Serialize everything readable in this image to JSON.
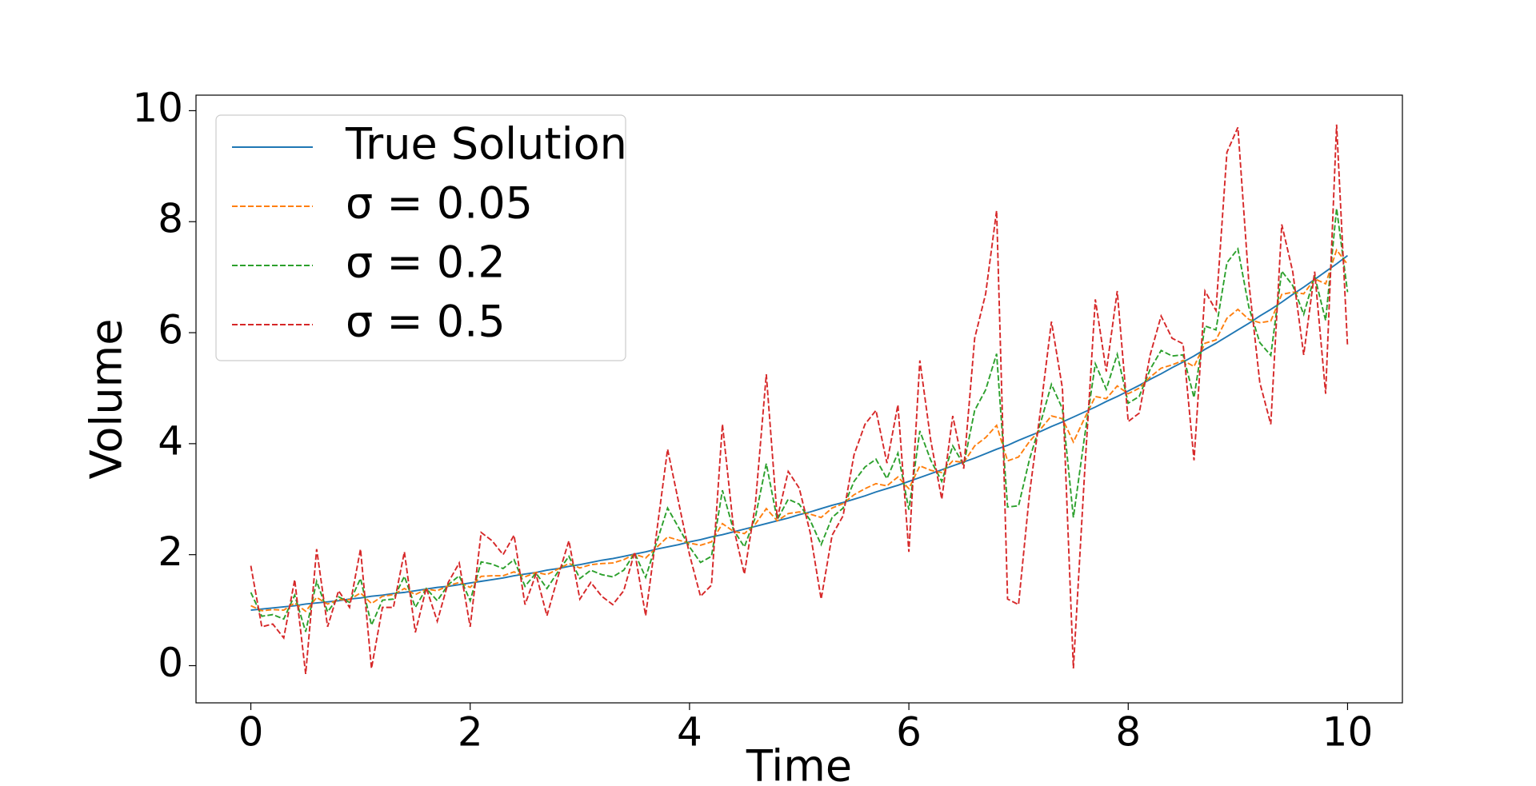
{
  "chart_data": {
    "type": "line",
    "xlabel": "Time",
    "ylabel": "Volume",
    "x": [
      0,
      0.1,
      0.2,
      0.3,
      0.4,
      0.5,
      0.6,
      0.7,
      0.8,
      0.9,
      1,
      1.1,
      1.2,
      1.3,
      1.4,
      1.5,
      1.6,
      1.7,
      1.8,
      1.9,
      2,
      2.1,
      2.2,
      2.3,
      2.4,
      2.5,
      2.6,
      2.7,
      2.8,
      2.9,
      3,
      3.1,
      3.2,
      3.3,
      3.4,
      3.5,
      3.6,
      3.7,
      3.8,
      3.9,
      4,
      4.1,
      4.2,
      4.3,
      4.4,
      4.5,
      4.6,
      4.7,
      4.8,
      4.9,
      5,
      5.1,
      5.2,
      5.3,
      5.4,
      5.5,
      5.6,
      5.7,
      5.8,
      5.9,
      6,
      6.1,
      6.2,
      6.3,
      6.4,
      6.5,
      6.6,
      6.7,
      6.8,
      6.9,
      7,
      7.1,
      7.2,
      7.3,
      7.4,
      7.5,
      7.6,
      7.7,
      7.8,
      7.9,
      8,
      8.1,
      8.2,
      8.3,
      8.4,
      8.5,
      8.6,
      8.7,
      8.8,
      8.9,
      9,
      9.1,
      9.2,
      9.3,
      9.4,
      9.5,
      9.6,
      9.7,
      9.8,
      9.9,
      10
    ],
    "series": [
      {
        "name": "True Solution",
        "color": "#1f77b4",
        "dashed": false,
        "values": [
          1.0,
          1.02,
          1.04,
          1.06,
          1.08,
          1.11,
          1.13,
          1.15,
          1.17,
          1.2,
          1.22,
          1.25,
          1.27,
          1.3,
          1.32,
          1.35,
          1.38,
          1.41,
          1.43,
          1.46,
          1.49,
          1.52,
          1.55,
          1.58,
          1.62,
          1.65,
          1.68,
          1.72,
          1.75,
          1.79,
          1.82,
          1.86,
          1.9,
          1.93,
          1.97,
          2.01,
          2.05,
          2.1,
          2.14,
          2.18,
          2.23,
          2.27,
          2.32,
          2.36,
          2.41,
          2.46,
          2.51,
          2.56,
          2.61,
          2.66,
          2.72,
          2.77,
          2.83,
          2.89,
          2.94,
          3.0,
          3.06,
          3.13,
          3.19,
          3.25,
          3.32,
          3.39,
          3.46,
          3.53,
          3.6,
          3.67,
          3.74,
          3.82,
          3.9,
          3.97,
          4.06,
          4.14,
          4.22,
          4.31,
          4.39,
          4.48,
          4.57,
          4.66,
          4.76,
          4.85,
          4.95,
          5.05,
          5.16,
          5.26,
          5.37,
          5.47,
          5.58,
          5.7,
          5.81,
          5.93,
          6.05,
          6.17,
          6.3,
          6.42,
          6.55,
          6.69,
          6.82,
          6.96,
          7.1,
          7.24,
          7.39
        ]
      },
      {
        "name": "σ = 0.05",
        "color": "#ff7f0e",
        "dashed": true,
        "values": [
          1.08,
          0.99,
          1.01,
          1.0,
          1.13,
          0.98,
          1.23,
          1.11,
          1.19,
          1.19,
          1.31,
          1.12,
          1.25,
          1.28,
          1.39,
          1.28,
          1.38,
          1.35,
          1.44,
          1.5,
          1.41,
          1.61,
          1.62,
          1.62,
          1.69,
          1.6,
          1.68,
          1.64,
          1.74,
          1.84,
          1.76,
          1.82,
          1.84,
          1.85,
          1.91,
          2.01,
          1.94,
          2.13,
          2.32,
          2.26,
          2.21,
          2.17,
          2.23,
          2.56,
          2.42,
          2.38,
          2.55,
          2.83,
          2.61,
          2.74,
          2.77,
          2.73,
          2.67,
          2.84,
          2.92,
          3.08,
          3.19,
          3.28,
          3.24,
          3.4,
          3.19,
          3.6,
          3.52,
          3.48,
          3.69,
          3.66,
          3.96,
          4.11,
          4.33,
          3.69,
          3.76,
          4.04,
          4.26,
          4.5,
          4.45,
          4.03,
          4.45,
          4.85,
          4.81,
          5.04,
          4.9,
          5.0,
          5.2,
          5.36,
          5.42,
          5.5,
          5.39,
          5.81,
          5.87,
          6.26,
          6.42,
          6.24,
          6.18,
          6.21,
          6.69,
          6.73,
          6.7,
          6.97,
          6.88,
          7.49,
          7.23
        ]
      },
      {
        "name": "σ = 0.2",
        "color": "#2ca02c",
        "dashed": true,
        "values": [
          1.32,
          0.89,
          0.92,
          0.84,
          1.27,
          0.61,
          1.52,
          0.97,
          1.24,
          1.14,
          1.57,
          0.73,
          1.18,
          1.2,
          1.61,
          1.05,
          1.39,
          1.17,
          1.46,
          1.62,
          1.17,
          1.87,
          1.83,
          1.75,
          1.91,
          1.43,
          1.67,
          1.39,
          1.69,
          1.97,
          1.57,
          1.72,
          1.64,
          1.6,
          1.72,
          2.03,
          1.59,
          2.22,
          2.84,
          2.49,
          2.14,
          1.86,
          1.97,
          3.16,
          2.45,
          2.14,
          2.67,
          3.64,
          2.63,
          3.0,
          2.91,
          2.62,
          2.18,
          2.67,
          2.84,
          3.32,
          3.58,
          3.72,
          3.37,
          3.83,
          2.81,
          4.23,
          3.7,
          3.32,
          3.96,
          3.62,
          4.6,
          4.97,
          5.62,
          2.86,
          2.88,
          3.72,
          4.37,
          5.07,
          4.63,
          2.67,
          4.1,
          5.44,
          4.98,
          5.61,
          4.73,
          4.85,
          5.34,
          5.68,
          5.58,
          5.6,
          4.83,
          6.12,
          6.05,
          7.26,
          7.51,
          6.46,
          5.82,
          5.59,
          7.11,
          6.85,
          6.33,
          7.02,
          6.22,
          8.24,
          6.73
        ]
      },
      {
        "name": "σ = 0.5",
        "color": "#d62728",
        "dashed": true,
        "values": [
          1.8,
          0.7,
          0.75,
          0.5,
          1.55,
          -0.15,
          2.1,
          0.7,
          1.35,
          1.05,
          2.1,
          -0.05,
          1.05,
          1.05,
          2.05,
          0.6,
          1.4,
          0.8,
          1.5,
          1.85,
          0.7,
          2.4,
          2.25,
          2.0,
          2.35,
          1.1,
          1.65,
          0.9,
          1.6,
          2.25,
          1.2,
          1.5,
          1.25,
          1.1,
          1.35,
          2.05,
          0.9,
          2.4,
          3.9,
          2.95,
          2.0,
          1.25,
          1.45,
          4.35,
          2.5,
          1.65,
          2.9,
          5.25,
          2.65,
          3.5,
          3.2,
          2.4,
          1.2,
          2.35,
          2.7,
          3.8,
          4.35,
          4.6,
          3.65,
          4.7,
          2.05,
          5.5,
          4.05,
          3.0,
          4.5,
          3.55,
          5.9,
          6.7,
          8.2,
          1.2,
          1.1,
          3.1,
          4.6,
          6.2,
          5.0,
          -0.05,
          3.4,
          6.6,
          5.3,
          6.75,
          4.4,
          4.55,
          5.6,
          6.3,
          5.9,
          5.8,
          3.7,
          6.75,
          6.4,
          9.25,
          9.7,
          6.9,
          5.1,
          4.35,
          7.95,
          7.1,
          5.6,
          7.1,
          4.9,
          9.75,
          5.75
        ]
      }
    ],
    "xlim": [
      -0.5,
      10.5
    ],
    "ylim": [
      -0.67,
      10.28
    ],
    "xticks": [
      0,
      2,
      4,
      6,
      8,
      10
    ],
    "yticks": [
      0,
      2,
      4,
      6,
      8,
      10
    ],
    "grid": false,
    "legend": "upper left"
  }
}
